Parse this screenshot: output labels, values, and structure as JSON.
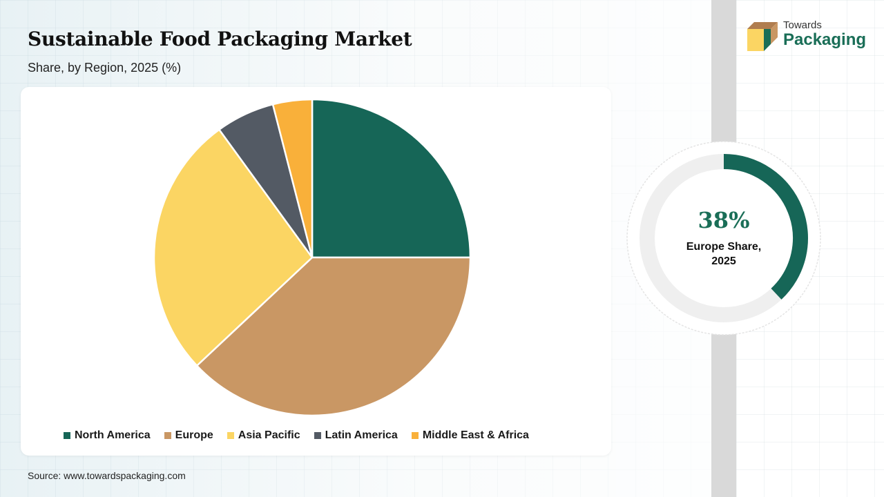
{
  "header": {
    "title": "Sustainable Food Packaging Market",
    "subtitle": "Share, by Region, 2025 (%)"
  },
  "logo": {
    "line1": "Towards",
    "line2": "Packaging"
  },
  "chart_data": {
    "type": "pie",
    "categories": [
      "North America",
      "Europe",
      "Asia Pacific",
      "Latin America",
      "Middle East & Africa"
    ],
    "values": [
      25,
      38,
      27,
      6,
      4
    ],
    "colors": [
      "#166657",
      "#c99764",
      "#fbd563",
      "#535a64",
      "#f9b03a"
    ],
    "legend_position": "bottom"
  },
  "highlight": {
    "value": "38%",
    "label_line1": "Europe Share,",
    "label_line2": "2025",
    "fraction": 0.38,
    "color": "#166657",
    "track_color": "#efefef"
  },
  "source": "Source: www.towardspackaging.com"
}
